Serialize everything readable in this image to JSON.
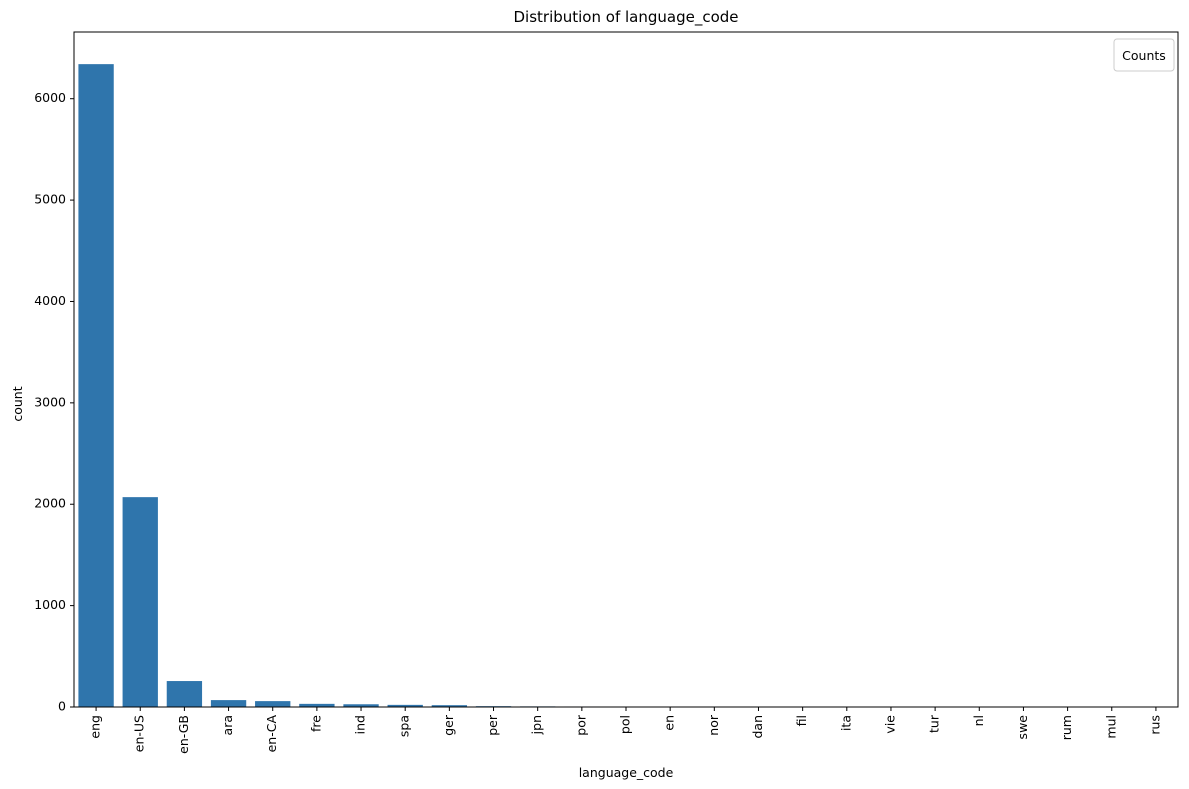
{
  "chart_data": {
    "type": "bar",
    "title": "Distribution of language_code",
    "xlabel": "language_code",
    "ylabel": "count",
    "categories": [
      "eng",
      "en-US",
      "en-GB",
      "ara",
      "en-CA",
      "fre",
      "ind",
      "spa",
      "ger",
      "per",
      "jpn",
      "por",
      "pol",
      "en",
      "nor",
      "dan",
      "fil",
      "ita",
      "vie",
      "tur",
      "nl",
      "swe",
      "rum",
      "mul",
      "rus"
    ],
    "values": [
      6341,
      2070,
      256,
      68,
      58,
      31,
      27,
      21,
      18,
      8,
      6,
      5,
      4,
      3,
      3,
      3,
      2,
      2,
      2,
      2,
      1,
      1,
      1,
      1,
      1
    ],
    "ylim": [
      0,
      6658
    ],
    "yticks": [
      0,
      1000,
      2000,
      3000,
      4000,
      5000,
      6000
    ],
    "ytick_labels": [
      "0",
      "1000",
      "2000",
      "3000",
      "4000",
      "5000",
      "6000"
    ],
    "grid": false,
    "color": "#2f75ac",
    "legend": {
      "title": "Counts",
      "entries": [],
      "placement": "top-right"
    }
  }
}
